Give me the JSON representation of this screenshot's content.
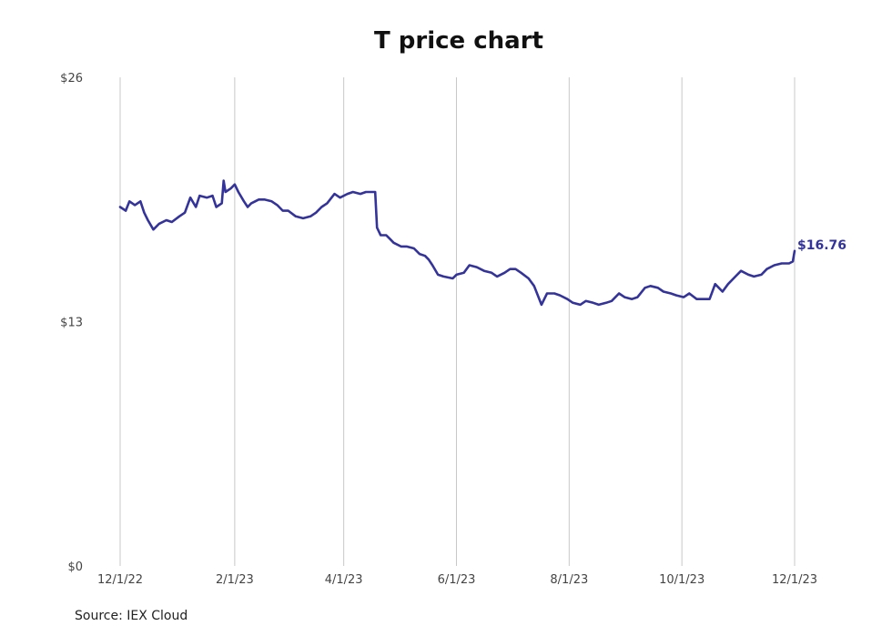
{
  "colors": {
    "line": "#333399",
    "grid": "#c8c8c8",
    "text": "#444444"
  },
  "source_text": "Source: IEX Cloud",
  "chart_data": {
    "type": "line",
    "title": "T price chart",
    "xlabel": "",
    "ylabel": "",
    "ylim": [
      0,
      26
    ],
    "x_ticks": [
      "12/1/22",
      "2/1/23",
      "4/1/23",
      "6/1/23",
      "8/1/23",
      "10/1/23",
      "12/1/23"
    ],
    "y_ticks": [
      "$0",
      "$13",
      "$26"
    ],
    "grid": "vertical",
    "last_value_label": "$16.76",
    "series": [
      {
        "values": [
          [
            "2022-12-01",
            19.1
          ],
          [
            "2022-12-04",
            18.9
          ],
          [
            "2022-12-06",
            19.4
          ],
          [
            "2022-12-09",
            19.2
          ],
          [
            "2022-12-12",
            19.4
          ],
          [
            "2022-12-14",
            18.8
          ],
          [
            "2022-12-16",
            18.4
          ],
          [
            "2022-12-19",
            17.9
          ],
          [
            "2022-12-22",
            18.2
          ],
          [
            "2022-12-26",
            18.4
          ],
          [
            "2022-12-29",
            18.3
          ],
          [
            "2023-01-02",
            18.6
          ],
          [
            "2023-01-05",
            18.8
          ],
          [
            "2023-01-08",
            19.6
          ],
          [
            "2023-01-11",
            19.1
          ],
          [
            "2023-01-13",
            19.7
          ],
          [
            "2023-01-17",
            19.6
          ],
          [
            "2023-01-20",
            19.7
          ],
          [
            "2023-01-22",
            19.1
          ],
          [
            "2023-01-25",
            19.3
          ],
          [
            "2023-01-26",
            20.5
          ],
          [
            "2023-01-27",
            19.9
          ],
          [
            "2023-01-30",
            20.1
          ],
          [
            "2023-02-01",
            20.3
          ],
          [
            "2023-02-03",
            19.9
          ],
          [
            "2023-02-06",
            19.4
          ],
          [
            "2023-02-08",
            19.1
          ],
          [
            "2023-02-10",
            19.3
          ],
          [
            "2023-02-14",
            19.5
          ],
          [
            "2023-02-17",
            19.5
          ],
          [
            "2023-02-21",
            19.4
          ],
          [
            "2023-02-24",
            19.2
          ],
          [
            "2023-02-27",
            18.9
          ],
          [
            "2023-03-02",
            18.9
          ],
          [
            "2023-03-06",
            18.6
          ],
          [
            "2023-03-10",
            18.5
          ],
          [
            "2023-03-14",
            18.6
          ],
          [
            "2023-03-17",
            18.8
          ],
          [
            "2023-03-20",
            19.1
          ],
          [
            "2023-03-23",
            19.3
          ],
          [
            "2023-03-27",
            19.8
          ],
          [
            "2023-03-30",
            19.6
          ],
          [
            "2023-04-03",
            19.8
          ],
          [
            "2023-04-06",
            19.9
          ],
          [
            "2023-04-10",
            19.8
          ],
          [
            "2023-04-13",
            19.9
          ],
          [
            "2023-04-18",
            19.9
          ],
          [
            "2023-04-19",
            18.0
          ],
          [
            "2023-04-21",
            17.6
          ],
          [
            "2023-04-24",
            17.6
          ],
          [
            "2023-04-26",
            17.4
          ],
          [
            "2023-04-28",
            17.2
          ],
          [
            "2023-05-02",
            17.0
          ],
          [
            "2023-05-05",
            17.0
          ],
          [
            "2023-05-09",
            16.9
          ],
          [
            "2023-05-12",
            16.6
          ],
          [
            "2023-05-15",
            16.5
          ],
          [
            "2023-05-17",
            16.3
          ],
          [
            "2023-05-19",
            16.0
          ],
          [
            "2023-05-22",
            15.5
          ],
          [
            "2023-05-25",
            15.4
          ],
          [
            "2023-05-30",
            15.3
          ],
          [
            "2023-06-01",
            15.5
          ],
          [
            "2023-06-05",
            15.6
          ],
          [
            "2023-06-08",
            16.0
          ],
          [
            "2023-06-12",
            15.9
          ],
          [
            "2023-06-16",
            15.7
          ],
          [
            "2023-06-20",
            15.6
          ],
          [
            "2023-06-23",
            15.4
          ],
          [
            "2023-06-27",
            15.6
          ],
          [
            "2023-06-30",
            15.8
          ],
          [
            "2023-07-03",
            15.8
          ],
          [
            "2023-07-06",
            15.6
          ],
          [
            "2023-07-10",
            15.3
          ],
          [
            "2023-07-13",
            14.9
          ],
          [
            "2023-07-17",
            13.9
          ],
          [
            "2023-07-20",
            14.5
          ],
          [
            "2023-07-24",
            14.5
          ],
          [
            "2023-07-27",
            14.4
          ],
          [
            "2023-07-31",
            14.2
          ],
          [
            "2023-08-03",
            14.0
          ],
          [
            "2023-08-07",
            13.9
          ],
          [
            "2023-08-10",
            14.1
          ],
          [
            "2023-08-14",
            14.0
          ],
          [
            "2023-08-17",
            13.9
          ],
          [
            "2023-08-21",
            14.0
          ],
          [
            "2023-08-24",
            14.1
          ],
          [
            "2023-08-28",
            14.5
          ],
          [
            "2023-08-31",
            14.3
          ],
          [
            "2023-09-04",
            14.2
          ],
          [
            "2023-09-07",
            14.3
          ],
          [
            "2023-09-11",
            14.8
          ],
          [
            "2023-09-14",
            14.9
          ],
          [
            "2023-09-18",
            14.8
          ],
          [
            "2023-09-21",
            14.6
          ],
          [
            "2023-09-25",
            14.5
          ],
          [
            "2023-09-28",
            14.4
          ],
          [
            "2023-10-02",
            14.3
          ],
          [
            "2023-10-05",
            14.5
          ],
          [
            "2023-10-09",
            14.2
          ],
          [
            "2023-10-12",
            14.2
          ],
          [
            "2023-10-16",
            14.2
          ],
          [
            "2023-10-19",
            15.0
          ],
          [
            "2023-10-23",
            14.6
          ],
          [
            "2023-10-26",
            15.0
          ],
          [
            "2023-10-30",
            15.4
          ],
          [
            "2023-11-02",
            15.7
          ],
          [
            "2023-11-06",
            15.5
          ],
          [
            "2023-11-09",
            15.4
          ],
          [
            "2023-11-13",
            15.5
          ],
          [
            "2023-11-16",
            15.8
          ],
          [
            "2023-11-20",
            16.0
          ],
          [
            "2023-11-24",
            16.1
          ],
          [
            "2023-11-28",
            16.1
          ],
          [
            "2023-11-30",
            16.2
          ],
          [
            "2023-12-01",
            16.76
          ]
        ]
      }
    ]
  }
}
